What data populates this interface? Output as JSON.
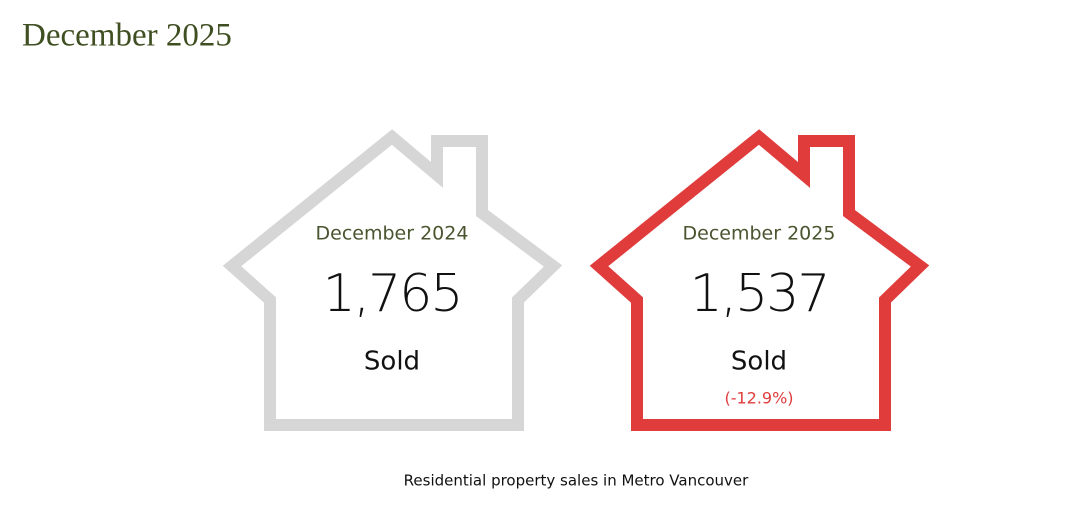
{
  "title": "December 2025",
  "cards": [
    {
      "period": "December 2024",
      "value": "1,765",
      "label": "Sold"
    },
    {
      "period": "December 2025",
      "value": "1,537",
      "label": "Sold",
      "change": "(-12.9%)"
    }
  ],
  "caption": "Residential property sales in Metro Vancouver"
}
